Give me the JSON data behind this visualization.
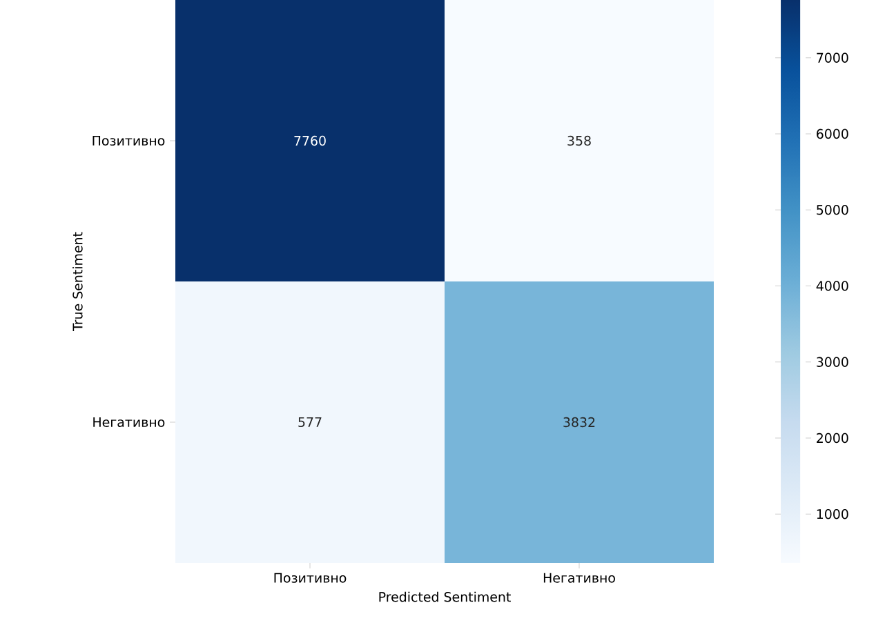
{
  "chart_data": {
    "type": "heatmap",
    "xlabel": "Predicted Sentiment",
    "ylabel": "True Sentiment",
    "categories": [
      "Позитивно",
      "Негативно"
    ],
    "y_categories": [
      "Позитивно",
      "Негативно"
    ],
    "cells": [
      [
        7760,
        358
      ],
      [
        577,
        3832
      ]
    ],
    "data_labels": true,
    "clim": [
      358,
      7760
    ],
    "cticks": [
      1000,
      2000,
      3000,
      4000,
      5000,
      6000,
      7000
    ]
  }
}
